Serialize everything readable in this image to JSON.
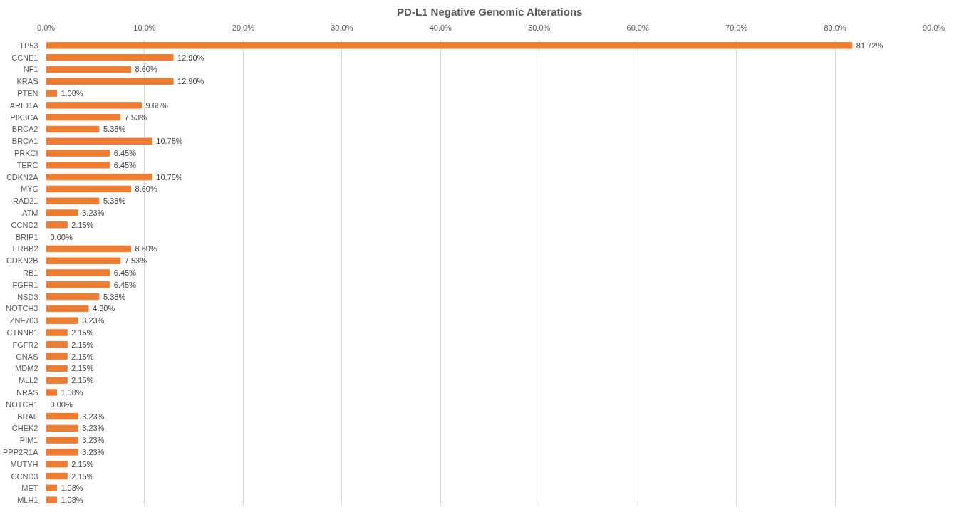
{
  "chart_data": {
    "type": "bar",
    "orientation": "horizontal",
    "title": "PD-L1 Negative Genomic Alterations",
    "categories": [
      "TP53",
      "CCNE1",
      "NF1",
      "KRAS",
      "PTEN",
      "ARID1A",
      "PIK3CA",
      "BRCA2",
      "BRCA1",
      "PRKCI",
      "TERC",
      "CDKN2A",
      "MYC",
      "RAD21",
      "ATM",
      "CCND2",
      "BRIP1",
      "ERBB2",
      "CDKN2B",
      "RB1",
      "FGFR1",
      "NSD3",
      "NOTCH3",
      "ZNF703",
      "CTNNB1",
      "FGFR2",
      "GNAS",
      "MDM2",
      "MLL2",
      "NRAS",
      "NOTCH1",
      "BRAF",
      "CHEK2",
      "PIM1",
      "PPP2R1A",
      "MUTYH",
      "CCND3",
      "MET",
      "MLH1"
    ],
    "values": [
      81.72,
      12.9,
      8.6,
      12.9,
      1.08,
      9.68,
      7.53,
      5.38,
      10.75,
      6.45,
      6.45,
      10.75,
      8.6,
      5.38,
      3.23,
      2.15,
      0.0,
      8.6,
      7.53,
      6.45,
      6.45,
      5.38,
      4.3,
      3.23,
      2.15,
      2.15,
      2.15,
      2.15,
      2.15,
      1.08,
      0.0,
      3.23,
      3.23,
      3.23,
      3.23,
      2.15,
      2.15,
      1.08,
      1.08
    ],
    "value_labels": [
      "81.72%",
      "12.90%",
      "8.60%",
      "12.90%",
      "1.08%",
      "9.68%",
      "7.53%",
      "5.38%",
      "10.75%",
      "6.45%",
      "6.45%",
      "10.75%",
      "8.60%",
      "5.38%",
      "3.23%",
      "2.15%",
      "0.00%",
      "8.60%",
      "7.53%",
      "6.45%",
      "6.45%",
      "5.38%",
      "4.30%",
      "3.23%",
      "2.15%",
      "2.15%",
      "2.15%",
      "2.15%",
      "2.15%",
      "1.08%",
      "0.00%",
      "3.23%",
      "3.23%",
      "3.23%",
      "3.23%",
      "2.15%",
      "2.15%",
      "1.08%",
      "1.08%"
    ],
    "color": "#ed7d31",
    "xlim": [
      0,
      90
    ],
    "xticks": [
      {
        "value": 0,
        "label": "0.0%"
      },
      {
        "value": 10,
        "label": "10.0%"
      },
      {
        "value": 20,
        "label": "20.0%"
      },
      {
        "value": 30,
        "label": "30.0%"
      },
      {
        "value": 40,
        "label": "40.0%"
      },
      {
        "value": 50,
        "label": "50.0%"
      },
      {
        "value": 60,
        "label": "60.0%"
      },
      {
        "value": 70,
        "label": "70.0%"
      },
      {
        "value": 80,
        "label": "80.0%"
      },
      {
        "value": 90,
        "label": "90.0%"
      }
    ],
    "grid": "x"
  }
}
